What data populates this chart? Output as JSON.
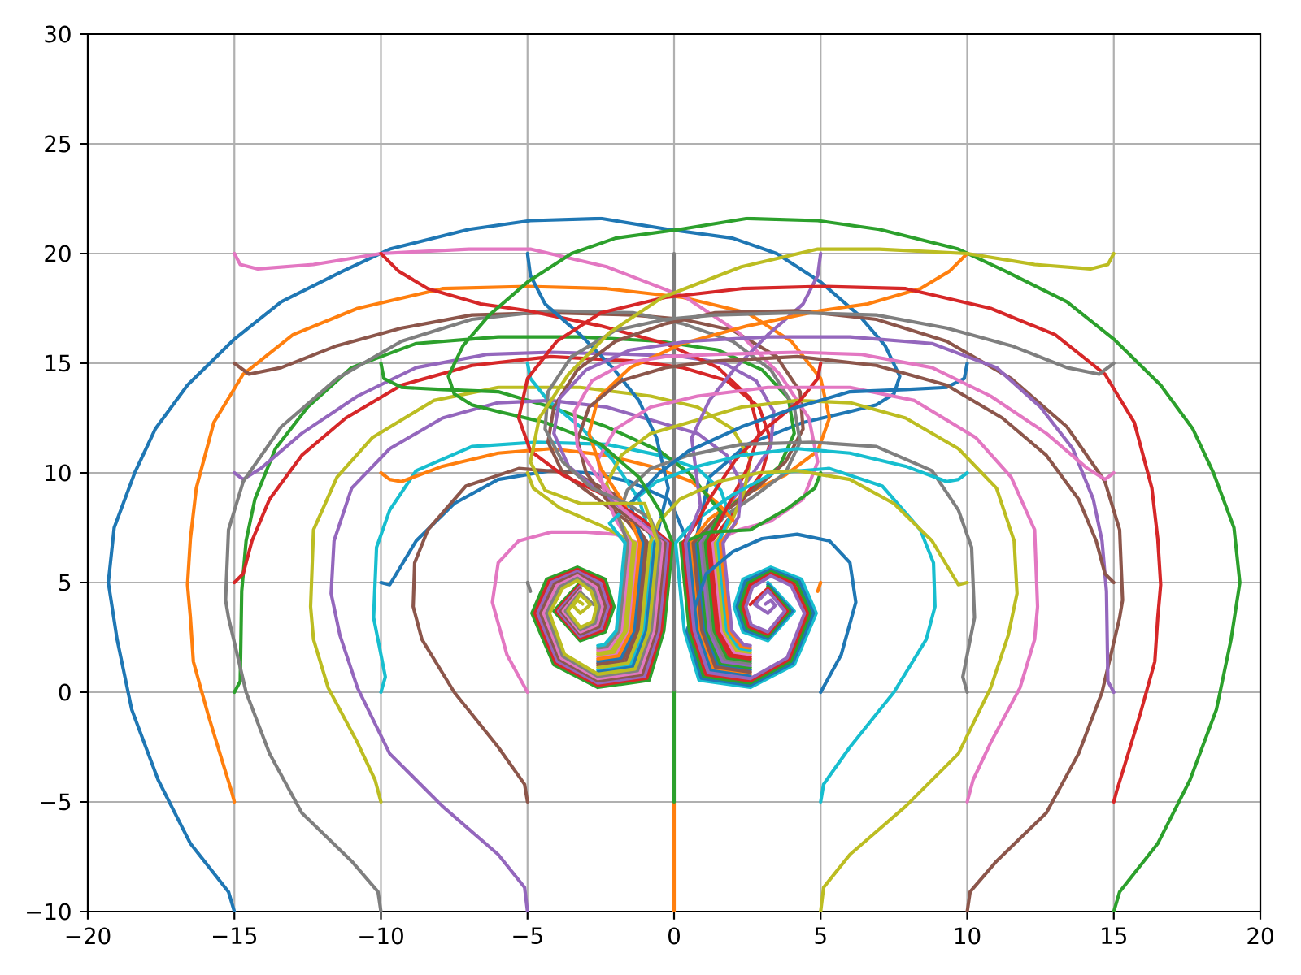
{
  "chart_data": {
    "type": "line",
    "xlim": [
      -20,
      20
    ],
    "ylim": [
      -10,
      30
    ],
    "xticks": [
      {
        "value": -20,
        "label": "−20"
      },
      {
        "value": -15,
        "label": "−15"
      },
      {
        "value": -10,
        "label": "−10"
      },
      {
        "value": -5,
        "label": "−5"
      },
      0,
      5,
      10,
      15,
      20
    ],
    "yticks": [
      {
        "value": -10,
        "label": "−10"
      },
      {
        "value": -5,
        "label": "−5"
      },
      0,
      5,
      10,
      15,
      20,
      25,
      30
    ],
    "grid": true,
    "series": [
      {
        "color": "#1f77b4",
        "x": [
          -15,
          -15.2,
          -16.5,
          -17.6,
          -18.5,
          -19.0,
          -19.3,
          -19.1,
          -18.4,
          -17.7,
          -16.6,
          -15.0,
          -13.4,
          -11.3,
          -9.7,
          -7.0,
          -4.9,
          -2.5,
          -0.2,
          2.0,
          3.5,
          5.0,
          6.3,
          7.2,
          7.7,
          7.5,
          6.9,
          6.0,
          4.4,
          2.5,
          1.2,
          0.73,
          1.03,
          1.49,
          2.6
        ],
        "values": [
          -10,
          -9.1,
          -6.9,
          -4.0,
          -0.8,
          2.4,
          5.0,
          7.5,
          10.0,
          12.0,
          14.0,
          16.1,
          17.8,
          19.2,
          20.2,
          21.1,
          21.5,
          21.6,
          21.1,
          20.7,
          20.0,
          18.7,
          17.2,
          15.8,
          14.4,
          13.6,
          13.1,
          12.8,
          12.3,
          11.3,
          9.8,
          6.8,
          2.8,
          1.23,
          1.02
        ]
      },
      {
        "color": "#ff7f0e",
        "x": [
          -15,
          -15.1,
          -15.4,
          -15.9,
          -16.4,
          -16.5,
          -16.6,
          -16.5,
          -16.3,
          -15.7,
          -14.7,
          -13.0,
          -10.8,
          -7.9,
          -5.0,
          -2.3,
          0.3,
          2.5,
          4.0,
          5.0,
          5.3,
          4.9,
          3.8,
          2.4,
          1.2,
          0.56,
          0.86,
          1.33,
          2.6
        ],
        "values": [
          -5,
          -4.5,
          -3.2,
          -1.0,
          1.4,
          3.4,
          4.9,
          7.0,
          9.3,
          12.3,
          14.5,
          16.3,
          17.5,
          18.4,
          18.5,
          18.4,
          18.0,
          17.3,
          16.0,
          14.3,
          12.5,
          11.0,
          9.9,
          9.0,
          7.9,
          6.8,
          2.8,
          1.06,
          0.82
        ]
      },
      {
        "color": "#2ca02c",
        "x": [
          -15,
          -14.8,
          -14.75,
          -14.6,
          -14.3,
          -13.6,
          -12.5,
          -11.0,
          -8.8,
          -6.0,
          -3.2,
          -0.5,
          1.5,
          3.0,
          3.9,
          4.1,
          3.6,
          2.6,
          1.5,
          0.82,
          1.12,
          1.57,
          2.6
        ],
        "values": [
          0,
          0.5,
          4.6,
          6.9,
          8.8,
          11.1,
          13.0,
          14.8,
          15.9,
          16.2,
          16.2,
          16.0,
          15.6,
          14.7,
          13.4,
          11.8,
          10.3,
          9.2,
          8.0,
          6.8,
          2.8,
          1.32,
          1.12
        ]
      },
      {
        "color": "#d62728",
        "x": [
          -15,
          -14.7,
          -14.4,
          -13.8,
          -12.7,
          -11.2,
          -9.3,
          -6.9,
          -4.2,
          -1.4,
          0.3,
          1.8,
          2.9,
          3.3,
          3.0,
          2.2,
          1.24,
          1.54,
          1.97,
          2.6
        ],
        "values": [
          5,
          5.4,
          6.9,
          8.8,
          10.8,
          12.5,
          14.0,
          14.9,
          15.3,
          15.1,
          14.8,
          14.2,
          13.0,
          11.5,
          10.0,
          8.5,
          6.8,
          2.8,
          1.74,
          1.62
        ]
      },
      {
        "color": "#9467bd",
        "x": [
          -15,
          -14.7,
          -14.1,
          -12.7,
          -10.8,
          -8.8,
          -6.4,
          -4.2,
          -1.4,
          0.3,
          1.7,
          2.8,
          3.4,
          3.3,
          2.6,
          1.7,
          0.9,
          1.2,
          1.65,
          2.6
        ],
        "values": [
          10,
          9.7,
          10.2,
          11.8,
          13.5,
          14.8,
          15.4,
          15.5,
          15.4,
          15.3,
          15.0,
          14.2,
          12.8,
          11.2,
          9.8,
          8.3,
          6.8,
          2.8,
          1.4,
          1.22
        ]
      },
      {
        "color": "#8c564b",
        "x": [
          -15,
          -14.5,
          -13.4,
          -11.5,
          -9.3,
          -6.9,
          -4.2,
          -1.4,
          0.3,
          2.0,
          3.5,
          4.3,
          4.4,
          3.8,
          2.8,
          1.5,
          0.65,
          0.95,
          1.41,
          2.6
        ],
        "values": [
          15,
          14.5,
          14.8,
          15.8,
          16.6,
          17.2,
          17.3,
          17.2,
          17.0,
          16.5,
          15.3,
          13.7,
          12.0,
          10.5,
          9.3,
          8.0,
          6.8,
          2.8,
          1.15,
          0.92
        ]
      },
      {
        "color": "#e377c2",
        "x": [
          -15,
          -14.8,
          -14.2,
          -12.3,
          -10.0,
          -7.0,
          -4.9,
          -2.3,
          0.4,
          2.2,
          3.6,
          4.6,
          4.9,
          4.4,
          3.3,
          2.2,
          1.33,
          1.63,
          2.05,
          2.6
        ],
        "values": [
          20,
          19.5,
          19.3,
          19.5,
          20.0,
          20.2,
          20.2,
          19.4,
          18.0,
          16.4,
          14.5,
          12.5,
          10.5,
          8.8,
          7.8,
          7.4,
          6.8,
          2.8,
          1.83,
          1.72
        ]
      },
      {
        "color": "#7f7f7f",
        "x": [
          -10,
          -10.1,
          -11.0,
          -12.7,
          -13.8,
          -14.6,
          -15.2,
          -15.3,
          -15.2,
          -14.7,
          -13.4,
          -11.5,
          -9.3,
          -6.9,
          -4.2,
          -1.4,
          0.3,
          2.0,
          3.3,
          4.1,
          4.3,
          3.8,
          2.8,
          1.7,
          0.99,
          1.29,
          1.73,
          2.6
        ],
        "values": [
          -10,
          -9.1,
          -7.7,
          -5.5,
          -2.8,
          0,
          3.4,
          4.2,
          7.4,
          9.6,
          12.1,
          14.3,
          16.0,
          17.0,
          17.4,
          17.3,
          16.8,
          16.0,
          14.7,
          13.0,
          11.4,
          10.0,
          9.0,
          8.0,
          6.8,
          2.8,
          1.49,
          1.32
        ]
      },
      {
        "color": "#bcbd22",
        "x": [
          -10,
          -10.2,
          -10.8,
          -11.8,
          -12.3,
          -12.4,
          -12.3,
          -11.5,
          -10.3,
          -8.2,
          -6.0,
          -3.2,
          -0.8,
          0.8,
          2.0,
          2.6,
          2.4,
          2.0,
          1.41,
          1.71,
          2.13,
          2.6
        ],
        "values": [
          -5,
          -4.0,
          -2.3,
          0.2,
          2.4,
          3.9,
          7.4,
          9.8,
          11.6,
          13.3,
          13.9,
          13.9,
          13.5,
          13.0,
          12.0,
          10.6,
          9.2,
          7.9,
          6.8,
          2.8,
          1.91,
          1.82
        ]
      },
      {
        "color": "#17becf",
        "x": [
          -10,
          -9.85,
          -10.25,
          -10.15,
          -9.7,
          -8.8,
          -6.9,
          -4.7,
          -2.3,
          -0.5,
          0.8,
          1.6,
          1.9,
          1.5,
          1.8,
          2.21,
          2.6
        ],
        "values": [
          0,
          0.7,
          3.4,
          6.6,
          8.3,
          10.1,
          11.2,
          11.4,
          11.3,
          10.8,
          10.2,
          9.2,
          8.0,
          6.8,
          2.8,
          2.0,
          1.92
        ]
      },
      {
        "color": "#1f77b4",
        "x": [
          -10,
          -9.7,
          -8.8,
          -7.5,
          -6.0,
          -4.2,
          -2.9,
          -1.5,
          -0.2,
          0.1,
          0.48,
          0.78,
          1.25,
          2.6
        ],
        "values": [
          5,
          4.9,
          6.9,
          8.6,
          9.7,
          10.1,
          10.0,
          9.6,
          8.8,
          8.0,
          6.8,
          2.8,
          0.98,
          0.72
        ]
      },
      {
        "color": "#ff7f0e",
        "x": [
          -10,
          -9.7,
          -9.3,
          -7.9,
          -6.0,
          -4.2,
          -2.3,
          -0.8,
          0.6,
          1.5,
          2.1,
          1.58,
          1.88,
          2.29,
          2.6
        ],
        "values": [
          10,
          9.7,
          9.6,
          10.3,
          10.9,
          11.1,
          10.8,
          10.3,
          9.6,
          8.6,
          7.7,
          6.8,
          2.8,
          2.08,
          2.02
        ]
      },
      {
        "color": "#2ca02c",
        "x": [
          -10,
          -9.9,
          -9.3,
          -7.9,
          -6.0,
          -4.2,
          -2.3,
          -0.5,
          0.5,
          1.6,
          1.07,
          1.37,
          1.81,
          2.6
        ],
        "values": [
          15,
          14.3,
          13.9,
          13.8,
          13.7,
          13.0,
          12.1,
          11.0,
          10.0,
          8.2,
          6.8,
          2.8,
          1.57,
          1.42
        ]
      },
      {
        "color": "#d62728",
        "x": [
          -10,
          -9.4,
          -8.4,
          -6.6,
          -5.0,
          -2.5,
          -0.3,
          1.5,
          2.6,
          2.9,
          2.5,
          1.8,
          1.16,
          1.46,
          1.89,
          2.6
        ],
        "values": [
          20,
          19.2,
          18.4,
          17.7,
          17.4,
          16.7,
          15.9,
          14.8,
          13.4,
          11.8,
          10.2,
          8.4,
          6.8,
          2.8,
          1.66,
          1.52
        ]
      },
      {
        "color": "#9467bd",
        "x": [
          -5,
          -5.1,
          -6.0,
          -7.9,
          -9.7,
          -10.8,
          -11.4,
          -11.7,
          -11.6,
          -11.0,
          -9.7,
          -7.9,
          -6.0,
          -4.2,
          -2.3,
          -0.5,
          0.8,
          1.8,
          2.3,
          2.2,
          1.67,
          1.97,
          2.37,
          2.6
        ],
        "values": [
          -10,
          -8.9,
          -7.4,
          -5.2,
          -2.8,
          0.2,
          2.6,
          4.5,
          6.9,
          9.3,
          11.1,
          12.5,
          13.2,
          13.3,
          13.0,
          12.3,
          11.8,
          10.8,
          9.5,
          8.0,
          6.8,
          2.8,
          2.17,
          2.12
        ]
      },
      {
        "color": "#8c564b",
        "x": [
          -5,
          -5.1,
          -6.0,
          -7.5,
          -8.6,
          -8.9,
          -8.85,
          -8.4,
          -7.1,
          -5.3,
          -3.4,
          -2.0,
          -0.9,
          -1.2,
          -1.65,
          -2.6
        ],
        "values": [
          -5,
          -4.2,
          -2.5,
          0,
          2.4,
          3.9,
          5.9,
          7.4,
          9.4,
          10.2,
          10.0,
          9.0,
          6.8,
          2.8,
          1.4,
          1.22
        ]
      },
      {
        "color": "#e377c2",
        "x": [
          -5,
          -5.7,
          -6.2,
          -6.0,
          -5.3,
          -4.2,
          -3.0,
          -2.0,
          -1.24,
          -1.54,
          -1.97,
          -2.6
        ],
        "values": [
          0,
          1.7,
          4.1,
          5.9,
          6.9,
          7.3,
          7.3,
          7.2,
          6.8,
          2.8,
          1.74,
          1.62
        ]
      },
      {
        "color": "#7f7f7f",
        "x": [
          -5,
          -4.9
        ],
        "values": [
          5,
          4.6
        ]
      },
      {
        "color": "#bcbd22",
        "x": [
          -5,
          -4.8,
          -3.9,
          -2.5,
          -1.33,
          -1.63,
          -2.05,
          -2.6
        ],
        "values": [
          10,
          9.3,
          8.4,
          7.6,
          6.8,
          2.8,
          1.83,
          1.72
        ]
      },
      {
        "color": "#17becf",
        "x": [
          -5,
          -4.9,
          -4.3,
          -3.2,
          -2.1,
          -1.2,
          -0.73,
          -1.03,
          -1.49,
          -2.6
        ],
        "values": [
          15,
          14.3,
          13.3,
          12.1,
          10.6,
          8.8,
          6.8,
          2.8,
          1.23,
          1.02
        ]
      },
      {
        "color": "#1f77b4",
        "x": [
          -5,
          -4.9,
          -4.4,
          -3.2,
          -2.1,
          -1.2,
          -0.6,
          -0.2,
          -0.65,
          -0.95,
          -1.41,
          -2.6
        ],
        "values": [
          20,
          19.0,
          17.7,
          16.3,
          14.8,
          13.3,
          11.6,
          9.3,
          6.8,
          2.8,
          1.15,
          0.92
        ]
      },
      {
        "color": "#ff7f0e",
        "x": [
          0,
          0
        ],
        "values": [
          -10,
          -5
        ]
      },
      {
        "color": "#2ca02c",
        "x": [
          0,
          0
        ],
        "values": [
          -5,
          0.1
        ]
      },
      {
        "color": "#7f7f7f",
        "x": [
          0,
          0
        ],
        "values": [
          20,
          0.1
        ]
      },
      {
        "color": "#bcbd22",
        "x": [
          5,
          5.1,
          6.0,
          7.9,
          9.7,
          10.8,
          11.4,
          11.7,
          11.6,
          11.0,
          9.7,
          7.9,
          6.0,
          4.2,
          2.3,
          0.5,
          -0.8,
          -1.8,
          -2.3,
          -2.0,
          -1.41,
          -1.71,
          -2.13,
          -2.6
        ],
        "values": [
          -10,
          -8.9,
          -7.4,
          -5.2,
          -2.8,
          0.2,
          2.6,
          4.5,
          6.9,
          9.3,
          11.1,
          12.5,
          13.2,
          13.3,
          13.0,
          12.3,
          11.8,
          10.8,
          9.5,
          8.2,
          6.8,
          2.8,
          1.91,
          1.82
        ]
      },
      {
        "color": "#17becf",
        "x": [
          5,
          5.1,
          6.0,
          7.5,
          8.6,
          8.9,
          8.85,
          8.4,
          7.1,
          5.3,
          3.4,
          2.0,
          0.7,
          0.05,
          0.35,
          0.85,
          2.6,
          4.1,
          4.85,
          4.35,
          3.3,
          2.35,
          2.05,
          2.35,
          3.2,
          4.1,
          3.2
        ],
        "values": [
          -5,
          -4.2,
          -2.5,
          0,
          2.4,
          3.9,
          5.9,
          7.4,
          9.4,
          10.2,
          10.0,
          9.0,
          7.8,
          6.8,
          2.8,
          0.55,
          0.22,
          1.25,
          3.6,
          5.15,
          5.7,
          5.15,
          3.9,
          2.75,
          2.35,
          3.7,
          5.0
        ]
      },
      {
        "color": "#1f77b4",
        "x": [
          5,
          5.7,
          6.2,
          6.0,
          5.3,
          4.2,
          3.0,
          2.0,
          1.1,
          0.44,
          0.93,
          2.6,
          4.04,
          4.75,
          4.26,
          3.3,
          2.43,
          2.15,
          2.42,
          3.2,
          4.02,
          3.2
        ],
        "values": [
          0,
          1.7,
          4.1,
          5.9,
          6.9,
          7.2,
          7.0,
          6.4,
          5.4,
          2.8,
          0.64,
          0.32,
          1.33,
          3.6,
          5.08,
          5.6,
          5.06,
          3.9,
          2.83,
          2.45,
          3.7,
          4.91
        ]
      },
      {
        "color": "#ff7f0e",
        "x": [
          5,
          4.9
        ],
        "values": [
          5,
          4.6
        ]
      },
      {
        "color": "#2ca02c",
        "x": [
          5,
          4.8,
          3.9,
          2.6,
          1.2,
          0.22,
          0.52,
          1.01,
          2.6,
          3.98,
          4.65,
          4.17,
          3.3,
          2.51,
          2.25,
          2.49,
          3.2,
          3.94,
          3.2
        ],
        "values": [
          10,
          9.3,
          8.4,
          7.4,
          7.3,
          6.8,
          2.8,
          0.72,
          0.42,
          1.41,
          3.6,
          5.01,
          5.5,
          4.97,
          3.9,
          2.91,
          2.55,
          3.7,
          4.82
        ]
      },
      {
        "color": "#d62728",
        "x": [
          5,
          4.9,
          4.3,
          3.2,
          2.1,
          1.2,
          0.8,
          0.31,
          0.61,
          1.09,
          2.6,
          3.92,
          4.55,
          4.08,
          3.3,
          2.59,
          2.35,
          2.56,
          3.2,
          3.86,
          3.2,
          2.6
        ],
        "values": [
          15,
          14.3,
          13.3,
          12.1,
          10.6,
          8.8,
          7.8,
          6.8,
          2.8,
          0.81,
          0.52,
          1.49,
          3.6,
          4.94,
          5.4,
          4.88,
          3.9,
          2.99,
          2.65,
          3.7,
          4.73,
          4.0
        ]
      },
      {
        "color": "#9467bd",
        "x": [
          5,
          4.9,
          4.4,
          3.2,
          2.1,
          1.2,
          0.6,
          0.9,
          0.39,
          0.69,
          1.17,
          2.6,
          3.86,
          4.45,
          3.99,
          3.3,
          2.67,
          2.45,
          2.63,
          3.2,
          3.78,
          3.2,
          2.75,
          3.2,
          3.45,
          3.3,
          3.12
        ],
        "values": [
          20,
          19.0,
          17.7,
          16.3,
          14.8,
          13.3,
          11.6,
          8.5,
          6.8,
          2.8,
          0.89,
          0.62,
          1.57,
          3.6,
          4.87,
          5.3,
          4.79,
          3.9,
          3.07,
          2.75,
          3.7,
          4.64,
          4.0,
          3.6,
          3.95,
          4.2,
          4.02
        ]
      },
      {
        "color": "#8c564b",
        "x": [
          10,
          10.1,
          11.0,
          12.7,
          13.8,
          14.6,
          15.2,
          15.3,
          15.2,
          14.7,
          13.4,
          11.5,
          9.3,
          6.9,
          4.2,
          1.4,
          -0.3,
          -2.0,
          -3.3,
          -4.1,
          -4.3,
          -3.8,
          -2.8,
          -1.6,
          -0.99,
          -1.29,
          -1.73,
          -2.6
        ],
        "values": [
          -10,
          -9.1,
          -7.7,
          -5.5,
          -2.8,
          0,
          3.4,
          4.2,
          7.4,
          9.6,
          12.1,
          14.3,
          16.0,
          17.0,
          17.4,
          17.3,
          16.8,
          16.0,
          14.7,
          13.0,
          11.4,
          10.0,
          9.0,
          7.8,
          6.8,
          2.8,
          1.49,
          1.32
        ]
      },
      {
        "color": "#e377c2",
        "x": [
          10,
          10.2,
          10.8,
          11.8,
          12.3,
          12.4,
          12.3,
          11.5,
          10.3,
          8.2,
          6.0,
          3.2,
          0.8,
          -0.8,
          -2.0,
          -2.6,
          -2.4,
          -2.0,
          -1.5,
          -1.8,
          -2.21,
          -2.6
        ],
        "values": [
          -5,
          -4.0,
          -2.3,
          0.2,
          2.4,
          3.9,
          7.4,
          9.8,
          11.6,
          13.3,
          13.9,
          13.9,
          13.5,
          13.0,
          12.0,
          10.6,
          9.2,
          7.9,
          6.8,
          2.8,
          2.0,
          1.92
        ]
      },
      {
        "color": "#7f7f7f",
        "x": [
          10,
          9.85,
          10.25,
          10.15,
          9.7,
          8.8,
          6.9,
          4.7,
          2.3,
          0.5,
          -0.8,
          -1.6,
          -1.9,
          -1.58,
          -1.88,
          -2.29,
          -2.6
        ],
        "values": [
          0,
          0.7,
          3.4,
          6.6,
          8.3,
          10.1,
          11.2,
          11.4,
          11.3,
          10.8,
          10.2,
          9.2,
          8.0,
          6.8,
          2.8,
          2.08,
          2.02
        ]
      },
      {
        "color": "#bcbd22",
        "x": [
          10,
          9.7,
          8.8,
          7.5,
          6.0,
          4.2,
          2.9,
          1.5,
          0.2,
          -0.5,
          -0.82,
          -1.12,
          -1.57,
          -2.6
        ],
        "values": [
          5,
          4.9,
          6.9,
          8.6,
          9.7,
          10.1,
          10.0,
          9.6,
          8.8,
          7.8,
          6.8,
          2.8,
          1.32,
          1.12
        ]
      },
      {
        "color": "#17becf",
        "x": [
          10,
          9.7,
          9.3,
          7.9,
          6.0,
          4.2,
          2.3,
          0.8,
          -0.6,
          -1.5,
          -2.2,
          -1.67,
          -1.97,
          -2.37,
          -2.6
        ],
        "values": [
          10,
          9.7,
          9.6,
          10.3,
          10.9,
          11.1,
          10.8,
          10.3,
          9.6,
          8.6,
          7.7,
          6.8,
          2.8,
          2.17,
          2.12
        ]
      },
      {
        "color": "#1f77b4",
        "x": [
          10,
          9.9,
          9.3,
          7.9,
          6.0,
          4.2,
          2.3,
          0.5,
          -0.5,
          -1.5,
          -1.07,
          -1.37,
          -1.81,
          -2.6
        ],
        "values": [
          15,
          14.3,
          13.9,
          13.8,
          13.7,
          13.0,
          12.1,
          11.0,
          10.0,
          8.6,
          6.8,
          2.8,
          1.57,
          1.42
        ]
      },
      {
        "color": "#ff7f0e",
        "x": [
          10,
          9.4,
          8.4,
          6.6,
          5.0,
          2.5,
          0.3,
          -1.5,
          -2.6,
          -2.9,
          -2.5,
          -1.7,
          -1.16,
          -1.46,
          -1.89,
          -2.6
        ],
        "values": [
          20,
          19.2,
          18.4,
          17.7,
          17.4,
          16.7,
          15.9,
          14.8,
          13.4,
          11.8,
          10.2,
          8.6,
          6.8,
          2.8,
          1.66,
          1.52
        ]
      },
      {
        "color": "#2ca02c",
        "x": [
          15,
          15.2,
          16.5,
          17.6,
          18.5,
          19.0,
          19.3,
          19.1,
          18.4,
          17.7,
          16.6,
          15.0,
          13.4,
          11.3,
          9.7,
          7.0,
          4.9,
          2.5,
          0.2,
          -2.0,
          -3.5,
          -5.0,
          -6.3,
          -7.2,
          -7.7,
          -7.5,
          -6.9,
          -6.0,
          -4.4,
          -2.5,
          -1.2,
          -0.5,
          -0.05,
          -0.35,
          -0.85,
          -2.6,
          -4.1,
          -4.85,
          -4.35,
          -3.3,
          -2.35,
          -2.05,
          -2.35,
          -3.2,
          -4.1,
          -3.2
        ],
        "values": [
          -10,
          -9.1,
          -6.9,
          -4.0,
          -0.8,
          2.4,
          5.0,
          7.5,
          10.0,
          12.0,
          14.0,
          16.1,
          17.8,
          19.2,
          20.2,
          21.1,
          21.5,
          21.6,
          21.1,
          20.7,
          20.0,
          18.7,
          17.2,
          15.8,
          14.4,
          13.6,
          13.1,
          12.8,
          12.3,
          11.3,
          9.8,
          8.3,
          6.8,
          2.8,
          0.55,
          0.22,
          1.25,
          3.6,
          5.15,
          5.7,
          5.15,
          3.9,
          2.75,
          2.35,
          3.7,
          5.0
        ]
      },
      {
        "color": "#d62728",
        "x": [
          15,
          15.1,
          15.4,
          15.9,
          16.4,
          16.5,
          16.6,
          16.5,
          16.3,
          15.7,
          14.7,
          13.0,
          10.8,
          7.9,
          5.0,
          2.3,
          -0.3,
          -2.5,
          -4.0,
          -5.0,
          -5.3,
          -4.9,
          -3.8,
          -2.4,
          -1.1,
          -0.14,
          -0.44,
          -0.93,
          -2.6,
          -4.04,
          -4.75,
          -4.26,
          -3.3,
          -2.43,
          -2.15,
          -2.42,
          -3.2,
          -4.02,
          -3.2
        ],
        "values": [
          -5,
          -4.5,
          -3.2,
          -1.0,
          1.4,
          3.4,
          4.9,
          7.0,
          9.3,
          12.3,
          14.5,
          16.3,
          17.5,
          18.4,
          18.5,
          18.4,
          18.0,
          17.3,
          16.0,
          14.3,
          12.5,
          11.0,
          9.9,
          9.0,
          7.9,
          6.8,
          2.8,
          0.64,
          0.32,
          1.33,
          3.6,
          5.08,
          5.6,
          5.06,
          3.9,
          2.83,
          2.45,
          3.7,
          4.91
        ]
      },
      {
        "color": "#9467bd",
        "x": [
          15,
          14.8,
          14.75,
          14.6,
          14.3,
          13.6,
          12.5,
          11.0,
          8.8,
          6.0,
          3.2,
          0.5,
          -1.5,
          -3.0,
          -3.9,
          -4.1,
          -3.6,
          -2.6,
          -1.3,
          -0.22,
          -0.52,
          -1.01,
          -2.6,
          -3.98,
          -4.65,
          -4.17,
          -3.3,
          -2.51,
          -2.25,
          -2.49,
          -3.2,
          -3.94,
          -3.2
        ],
        "values": [
          0,
          0.5,
          4.6,
          6.9,
          8.8,
          11.1,
          13.0,
          14.8,
          15.9,
          16.2,
          16.2,
          16.0,
          15.6,
          14.7,
          13.4,
          11.8,
          10.3,
          9.2,
          7.9,
          6.8,
          2.8,
          0.72,
          0.42,
          1.41,
          3.6,
          5.01,
          5.5,
          4.97,
          3.9,
          2.91,
          2.55,
          3.7,
          4.82
        ]
      },
      {
        "color": "#8c564b",
        "x": [
          15,
          14.7,
          14.4,
          13.8,
          12.7,
          11.2,
          9.3,
          6.9,
          4.2,
          1.4,
          -0.3,
          -1.8,
          -2.9,
          -3.3,
          -3.0,
          -2.2,
          -1.2,
          -0.31,
          -0.61,
          -1.09,
          -2.6,
          -3.92,
          -4.55,
          -4.08,
          -3.3,
          -2.59,
          -2.35,
          -2.56,
          -3.2,
          -3.86,
          -3.2
        ],
        "values": [
          5,
          5.4,
          6.9,
          8.8,
          10.8,
          12.5,
          14.0,
          14.9,
          15.3,
          15.1,
          14.8,
          14.2,
          13.0,
          11.5,
          10.0,
          8.6,
          7.6,
          6.8,
          2.8,
          0.81,
          0.52,
          1.49,
          3.6,
          4.94,
          5.4,
          4.88,
          3.9,
          2.99,
          2.65,
          3.7,
          4.73
        ]
      },
      {
        "color": "#e377c2",
        "x": [
          15,
          14.7,
          14.1,
          12.7,
          10.8,
          8.8,
          6.4,
          4.2,
          1.4,
          -0.3,
          -1.7,
          -2.8,
          -3.4,
          -3.3,
          -2.6,
          -1.8,
          -1.0,
          -0.39,
          -0.69,
          -1.17,
          -2.6,
          -3.86,
          -4.45,
          -3.99,
          -3.3,
          -2.67,
          -2.45,
          -2.63,
          -3.2,
          -3.78,
          -3.2
        ],
        "values": [
          10,
          9.7,
          10.2,
          11.8,
          13.5,
          14.8,
          15.4,
          15.5,
          15.4,
          15.3,
          15.0,
          14.2,
          12.8,
          11.2,
          9.8,
          8.4,
          7.5,
          6.8,
          2.8,
          0.89,
          0.62,
          1.57,
          3.6,
          4.87,
          5.3,
          4.79,
          3.9,
          3.07,
          2.75,
          3.7,
          4.64
        ]
      },
      {
        "color": "#7f7f7f",
        "x": [
          15,
          14.5,
          13.4,
          11.5,
          9.3,
          6.9,
          4.2,
          1.4,
          -0.3,
          -2.0,
          -3.5,
          -4.3,
          -4.4,
          -3.8,
          -2.8,
          -1.6,
          -0.8,
          -0.48,
          -0.78,
          -1.25,
          -2.6,
          -3.8,
          -4.35,
          -3.9,
          -3.3,
          -2.75,
          -2.55,
          -2.7,
          -3.2,
          -3.7,
          -3.2,
          -2.75
        ],
        "values": [
          15,
          14.5,
          14.8,
          15.8,
          16.6,
          17.2,
          17.3,
          17.2,
          17.0,
          16.5,
          15.3,
          13.7,
          12.0,
          10.5,
          9.3,
          8.6,
          7.9,
          6.8,
          2.8,
          0.98,
          0.72,
          1.65,
          3.6,
          4.8,
          5.2,
          4.7,
          3.9,
          3.15,
          2.85,
          3.7,
          4.55,
          4.0
        ]
      },
      {
        "color": "#bcbd22",
        "x": [
          15,
          14.8,
          14.2,
          12.3,
          10.0,
          7.0,
          4.9,
          2.3,
          -0.4,
          -2.2,
          -3.6,
          -4.6,
          -4.9,
          -4.4,
          -3.2,
          -1.0,
          -0.56,
          -0.86,
          -1.33,
          -2.6,
          -3.74,
          -4.25,
          -3.81,
          -3.3,
          -2.83,
          -2.65,
          -2.77,
          -3.2,
          -3.62,
          -3.2,
          -2.85,
          -3.2,
          -3.45,
          -3.3,
          -3.12
        ],
        "values": [
          20,
          19.5,
          19.3,
          19.5,
          20.0,
          20.2,
          20.2,
          19.4,
          18.0,
          16.4,
          14.5,
          12.5,
          10.5,
          9.2,
          8.6,
          8.6,
          6.8,
          2.8,
          1.06,
          0.82,
          1.73,
          3.6,
          4.73,
          5.1,
          4.61,
          3.9,
          3.23,
          2.95,
          3.7,
          4.46,
          4.0,
          3.6,
          3.95,
          4.2,
          4.02
        ]
      }
    ]
  }
}
